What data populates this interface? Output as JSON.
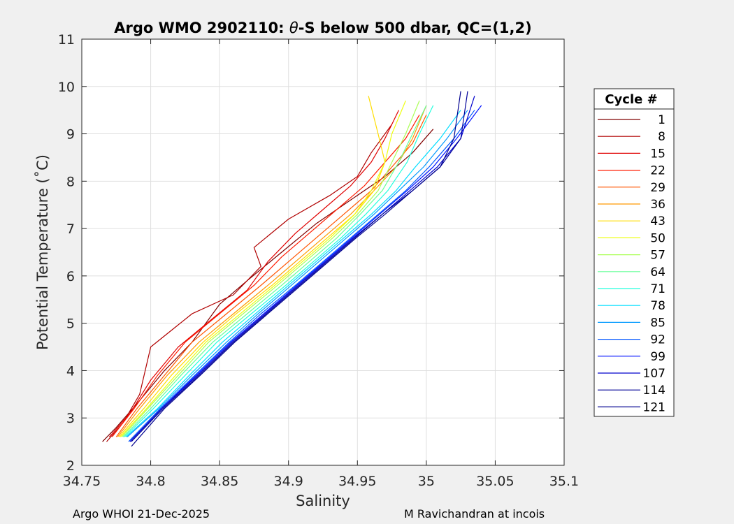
{
  "chart_data": {
    "type": "line",
    "title_prefix": "Argo WMO 2902110: ",
    "title_theta": "θ",
    "title_suffix": "-S below 500 dbar,  QC=(1,2)",
    "xlabel": "Salinity",
    "ylabel": "Potential Temperature (˚C)",
    "xlim": [
      34.75,
      35.1
    ],
    "ylim": [
      2,
      11
    ],
    "xticks": [
      34.75,
      34.8,
      34.85,
      34.9,
      34.95,
      35,
      35.05,
      35.1
    ],
    "xtick_labels": [
      "34.75",
      "34.8",
      "34.85",
      "34.9",
      "34.95",
      "35",
      "35.05",
      "35.1"
    ],
    "yticks": [
      2,
      3,
      4,
      5,
      6,
      7,
      8,
      9,
      10,
      11
    ],
    "ytick_labels": [
      "2",
      "3",
      "4",
      "5",
      "6",
      "7",
      "8",
      "9",
      "10",
      "11"
    ],
    "grid": true,
    "legend": {
      "title": "Cycle #",
      "position": "right-outside",
      "entries": [
        {
          "label": "1",
          "color": "#800000"
        },
        {
          "label": "8",
          "color": "#b00000"
        },
        {
          "label": "15",
          "color": "#e00000"
        },
        {
          "label": "22",
          "color": "#ff1a00"
        },
        {
          "label": "29",
          "color": "#ff5500"
        },
        {
          "label": "36",
          "color": "#ff9900"
        },
        {
          "label": "43",
          "color": "#ffdd00"
        },
        {
          "label": "50",
          "color": "#eeff11"
        },
        {
          "label": "57",
          "color": "#aaff55"
        },
        {
          "label": "64",
          "color": "#66ff99"
        },
        {
          "label": "71",
          "color": "#22ffdd"
        },
        {
          "label": "78",
          "color": "#00ddff"
        },
        {
          "label": "85",
          "color": "#0099ff"
        },
        {
          "label": "92",
          "color": "#0055ff"
        },
        {
          "label": "99",
          "color": "#0011ff"
        },
        {
          "label": "107",
          "color": "#0000cc"
        },
        {
          "label": "114",
          "color": "#000099"
        },
        {
          "label": "121",
          "color": "#00008f"
        }
      ]
    },
    "series": [
      {
        "name": "1",
        "color": "#800000",
        "x": [
          34.765,
          34.775,
          34.79,
          34.81,
          34.83,
          34.85,
          34.87,
          34.895,
          34.92,
          34.945,
          34.97,
          34.99,
          35.005
        ],
        "y": [
          2.5,
          2.8,
          3.3,
          4.0,
          4.6,
          5.4,
          5.9,
          6.5,
          7.1,
          7.6,
          8.1,
          8.6,
          9.1
        ]
      },
      {
        "name": "8",
        "color": "#b00000",
        "x": [
          34.768,
          34.78,
          34.792,
          34.8,
          34.83,
          34.86,
          34.88,
          34.875,
          34.9,
          34.93,
          34.95,
          34.96,
          34.975
        ],
        "y": [
          2.5,
          2.9,
          3.5,
          4.5,
          5.2,
          5.6,
          6.2,
          6.6,
          7.2,
          7.7,
          8.1,
          8.6,
          9.2
        ]
      },
      {
        "name": "15",
        "color": "#e00000",
        "x": [
          34.77,
          34.785,
          34.8,
          34.82,
          34.845,
          34.87,
          34.885,
          34.905,
          34.925,
          34.945,
          34.96,
          34.97,
          34.98
        ],
        "y": [
          2.6,
          3.1,
          3.8,
          4.5,
          5.1,
          5.7,
          6.3,
          6.9,
          7.4,
          7.9,
          8.4,
          8.9,
          9.5
        ]
      },
      {
        "name": "22",
        "color": "#ff1a00",
        "x": [
          34.772,
          34.788,
          34.805,
          34.825,
          34.85,
          34.875,
          34.895,
          34.915,
          34.935,
          34.955,
          34.97,
          34.985,
          34.995
        ],
        "y": [
          2.6,
          3.2,
          3.9,
          4.6,
          5.2,
          5.8,
          6.4,
          6.9,
          7.4,
          7.9,
          8.4,
          8.9,
          9.4
        ]
      },
      {
        "name": "29",
        "color": "#ff5500",
        "x": [
          34.775,
          34.79,
          34.81,
          34.83,
          34.855,
          34.88,
          34.9,
          34.92,
          34.94,
          34.96,
          34.975,
          34.99,
          35.0
        ],
        "y": [
          2.6,
          3.2,
          3.9,
          4.6,
          5.2,
          5.8,
          6.3,
          6.8,
          7.3,
          7.8,
          8.3,
          8.8,
          9.4
        ]
      },
      {
        "name": "36",
        "color": "#ff9900",
        "x": [
          34.776,
          34.792,
          34.812,
          34.835,
          34.86,
          34.885,
          34.905,
          34.925,
          34.945,
          34.962,
          34.978,
          34.99,
          35.0
        ],
        "y": [
          2.6,
          3.2,
          3.9,
          4.6,
          5.2,
          5.8,
          6.3,
          6.8,
          7.3,
          7.8,
          8.3,
          8.9,
          9.6
        ]
      },
      {
        "name": "43",
        "color": "#ffdd00",
        "x": [
          34.777,
          34.795,
          34.815,
          34.838,
          34.862,
          34.888,
          34.908,
          34.928,
          34.948,
          34.962,
          34.97,
          34.965,
          34.958
        ],
        "y": [
          2.6,
          3.2,
          3.9,
          4.6,
          5.2,
          5.8,
          6.3,
          6.8,
          7.3,
          7.8,
          8.4,
          9.0,
          9.8
        ]
      },
      {
        "name": "50",
        "color": "#eeff11",
        "x": [
          34.778,
          34.797,
          34.818,
          34.84,
          34.865,
          34.89,
          34.91,
          34.93,
          34.948,
          34.96,
          34.97,
          34.975,
          34.985
        ],
        "y": [
          2.6,
          3.2,
          3.9,
          4.6,
          5.2,
          5.8,
          6.3,
          6.8,
          7.3,
          7.8,
          8.4,
          9.0,
          9.7
        ]
      },
      {
        "name": "57",
        "color": "#aaff55",
        "x": [
          34.779,
          34.798,
          34.82,
          34.842,
          34.867,
          34.892,
          34.912,
          34.932,
          34.95,
          34.965,
          34.975,
          34.985,
          34.995
        ],
        "y": [
          2.6,
          3.2,
          3.9,
          4.6,
          5.2,
          5.8,
          6.3,
          6.8,
          7.3,
          7.8,
          8.4,
          9.0,
          9.7
        ]
      },
      {
        "name": "64",
        "color": "#66ff99",
        "x": [
          34.78,
          34.8,
          34.822,
          34.845,
          34.87,
          34.895,
          34.915,
          34.935,
          34.952,
          34.968,
          34.98,
          34.99,
          35.0
        ],
        "y": [
          2.6,
          3.2,
          3.9,
          4.6,
          5.2,
          5.8,
          6.3,
          6.8,
          7.3,
          7.8,
          8.4,
          9.0,
          9.6
        ]
      },
      {
        "name": "71",
        "color": "#22ffdd",
        "x": [
          34.781,
          34.802,
          34.825,
          34.848,
          34.873,
          34.898,
          34.918,
          34.938,
          34.956,
          34.972,
          34.986,
          34.995,
          35.005
        ],
        "y": [
          2.6,
          3.2,
          3.9,
          4.6,
          5.2,
          5.8,
          6.3,
          6.8,
          7.3,
          7.8,
          8.4,
          9.0,
          9.6
        ]
      },
      {
        "name": "78",
        "color": "#00ddff",
        "x": [
          34.782,
          34.805,
          34.828,
          34.852,
          34.876,
          34.9,
          34.92,
          34.94,
          34.96,
          34.978,
          34.992,
          35.01,
          35.025
        ],
        "y": [
          2.6,
          3.2,
          3.9,
          4.6,
          5.2,
          5.8,
          6.3,
          6.8,
          7.3,
          7.8,
          8.3,
          8.9,
          9.5
        ]
      },
      {
        "name": "85",
        "color": "#0099ff",
        "x": [
          34.783,
          34.806,
          34.83,
          34.855,
          34.878,
          34.902,
          34.922,
          34.942,
          34.962,
          34.98,
          34.998,
          35.015,
          35.03
        ],
        "y": [
          2.6,
          3.2,
          3.9,
          4.6,
          5.2,
          5.8,
          6.3,
          6.8,
          7.3,
          7.8,
          8.3,
          8.9,
          9.5
        ]
      },
      {
        "name": "92",
        "color": "#0055ff",
        "x": [
          34.784,
          34.807,
          34.832,
          34.857,
          34.88,
          34.905,
          34.925,
          34.945,
          34.965,
          34.985,
          35.002,
          35.02,
          35.035
        ],
        "y": [
          2.5,
          3.2,
          3.9,
          4.6,
          5.2,
          5.8,
          6.3,
          6.8,
          7.3,
          7.8,
          8.3,
          8.9,
          9.5
        ]
      },
      {
        "name": "99",
        "color": "#0011ff",
        "x": [
          34.785,
          34.808,
          34.833,
          34.858,
          34.882,
          34.906,
          34.926,
          34.946,
          34.966,
          34.986,
          35.005,
          35.022,
          35.04
        ],
        "y": [
          2.5,
          3.2,
          3.9,
          4.6,
          5.2,
          5.8,
          6.3,
          6.8,
          7.3,
          7.8,
          8.3,
          8.9,
          9.6
        ]
      },
      {
        "name": "107",
        "color": "#0000cc",
        "x": [
          34.785,
          34.808,
          34.834,
          34.859,
          34.883,
          34.907,
          34.927,
          34.947,
          34.968,
          34.988,
          35.008,
          35.025,
          35.035
        ],
        "y": [
          2.5,
          3.2,
          3.9,
          4.6,
          5.2,
          5.8,
          6.3,
          6.8,
          7.3,
          7.8,
          8.3,
          8.9,
          9.8
        ]
      },
      {
        "name": "114",
        "color": "#000099",
        "x": [
          34.786,
          34.809,
          34.835,
          34.86,
          34.884,
          34.908,
          34.928,
          34.948,
          34.968,
          34.99,
          35.01,
          35.025,
          35.03
        ],
        "y": [
          2.5,
          3.2,
          3.9,
          4.6,
          5.2,
          5.8,
          6.3,
          6.8,
          7.3,
          7.8,
          8.3,
          8.9,
          9.9
        ]
      },
      {
        "name": "121",
        "color": "#00008f",
        "x": [
          34.786,
          34.81,
          34.836,
          34.861,
          34.885,
          34.909,
          34.929,
          34.949,
          34.97,
          34.99,
          35.01,
          35.02,
          35.025
        ],
        "y": [
          2.4,
          3.2,
          3.9,
          4.6,
          5.2,
          5.8,
          6.3,
          6.8,
          7.3,
          7.8,
          8.3,
          8.9,
          9.9
        ]
      }
    ]
  },
  "footer": {
    "left": "Argo WHOI 21-Dec-2025",
    "right": "M Ravichandran at incois"
  }
}
